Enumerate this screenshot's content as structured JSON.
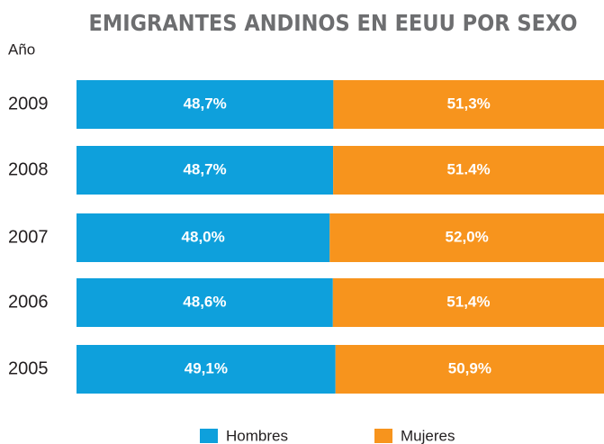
{
  "chart_data": {
    "type": "stacked_barh",
    "title": "EMIGRANTES ANDINOS EN EEUU POR SEXO",
    "y_label": "Año",
    "categories": [
      "2009",
      "2008",
      "2007",
      "2006",
      "2005"
    ],
    "series": [
      {
        "name": "Hombres",
        "color": "#0ea0dc",
        "values": [
          48.7,
          48.7,
          48.0,
          48.6,
          49.1
        ],
        "value_labels": [
          "48,7%",
          "48,7%",
          "48,0%",
          "48,6%",
          "49,1%"
        ]
      },
      {
        "name": "Mujeres",
        "color": "#f7941d",
        "values": [
          51.3,
          51.4,
          52.0,
          51.4,
          50.9
        ],
        "value_labels": [
          "51,3%",
          "51.4%",
          "52,0%",
          "51,4%",
          "50,9%"
        ]
      }
    ],
    "legend": "bottom"
  }
}
